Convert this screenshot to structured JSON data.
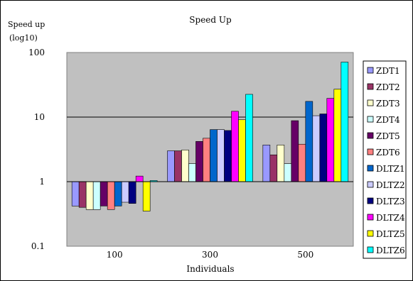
{
  "chart_data": {
    "type": "bar",
    "title": "Speed Up",
    "ylabel_line1": "Speed up",
    "ylabel_line2": "(log10)",
    "xlabel": "Individuals",
    "yscale": "log",
    "ylim": [
      0.1,
      100
    ],
    "yticks": [
      "0.1",
      "1",
      "10",
      "100"
    ],
    "ytick_values": [
      0.1,
      1,
      10,
      100
    ],
    "bar_baseline": 1,
    "plot_background": "#c0c0c0",
    "grid": true,
    "legend_position": "right",
    "categories": [
      "100",
      "300",
      "500"
    ],
    "series": [
      {
        "name": "ZDT1",
        "color": "#9999ff",
        "values": [
          0.42,
          3.0,
          3.7
        ]
      },
      {
        "name": "ZDT2",
        "color": "#993366",
        "values": [
          0.4,
          3.0,
          2.6
        ]
      },
      {
        "name": "ZDT3",
        "color": "#ffffcc",
        "values": [
          0.37,
          3.1,
          3.7
        ]
      },
      {
        "name": "ZDT4",
        "color": "#ccffff",
        "values": [
          0.37,
          1.9,
          1.9
        ]
      },
      {
        "name": "ZDT5",
        "color": "#660066",
        "values": [
          0.42,
          4.2,
          8.8
        ]
      },
      {
        "name": "ZDT6",
        "color": "#ff8080",
        "values": [
          0.37,
          4.7,
          3.8
        ]
      },
      {
        "name": "DLTZ1",
        "color": "#0066cc",
        "values": [
          0.42,
          6.4,
          17.5
        ]
      },
      {
        "name": "DLTZ2",
        "color": "#ccccff",
        "values": [
          0.48,
          6.4,
          10.5
        ]
      },
      {
        "name": "DLTZ3",
        "color": "#000080",
        "values": [
          0.46,
          6.2,
          11.2
        ]
      },
      {
        "name": "DLTZ4",
        "color": "#ff00ff",
        "values": [
          1.22,
          12.3,
          19.5
        ]
      },
      {
        "name": "DLTZ5",
        "color": "#ffff00",
        "values": [
          0.35,
          9.1,
          27.0
        ]
      },
      {
        "name": "DLTZ6",
        "color": "#00ffff",
        "values": [
          1.04,
          22.5,
          71.0
        ]
      }
    ]
  }
}
